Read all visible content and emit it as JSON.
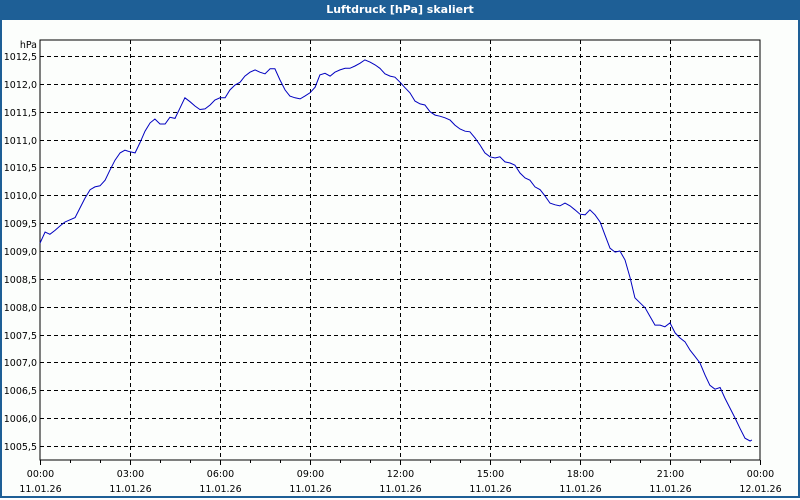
{
  "window": {
    "title": "Luftdruck [hPa] skaliert",
    "frame_color": "#1e5f96",
    "background": "#fcfefc"
  },
  "chart_data": {
    "type": "line",
    "title": "Luftdruck [hPa] skaliert",
    "xlabel": "",
    "ylabel": "hPa",
    "ylim": [
      1005.25,
      1012.78
    ],
    "grid": true,
    "legend": null,
    "line_color": "#0000c0",
    "y_ticks": [
      "1012,5",
      "1012,0",
      "1011,5",
      "1011,0",
      "1010,5",
      "1010,0",
      "1009,5",
      "1009,0",
      "1008,5",
      "1008,0",
      "1007,5",
      "1007,0",
      "1006,5",
      "1006,0",
      "1005,5"
    ],
    "y_tick_values": [
      1012.5,
      1012.0,
      1011.5,
      1011.0,
      1010.5,
      1010.0,
      1009.5,
      1009.0,
      1008.5,
      1008.0,
      1007.5,
      1007.0,
      1006.5,
      1006.0,
      1005.5
    ],
    "x_ticks": [
      {
        "time": "00:00",
        "date": "11.01.26"
      },
      {
        "time": "03:00",
        "date": "11.01.26"
      },
      {
        "time": "06:00",
        "date": "11.01.26"
      },
      {
        "time": "09:00",
        "date": "11.01.26"
      },
      {
        "time": "12:00",
        "date": "11.01.26"
      },
      {
        "time": "15:00",
        "date": "11.01.26"
      },
      {
        "time": "18:00",
        "date": "11.01.26"
      },
      {
        "time": "21:00",
        "date": "11.01.26"
      },
      {
        "time": "00:00",
        "date": "12.01.26"
      }
    ],
    "x_range_hours": [
      0,
      24
    ],
    "series": [
      {
        "name": "Luftdruck",
        "unit": "hPa",
        "x_hours": [
          0,
          0.17,
          0.33,
          0.5,
          0.67,
          0.83,
          1,
          1.17,
          1.33,
          1.5,
          1.67,
          1.83,
          2,
          2.17,
          2.33,
          2.5,
          2.67,
          2.83,
          3,
          3.17,
          3.33,
          3.5,
          3.67,
          3.83,
          4,
          4.17,
          4.33,
          4.5,
          4.67,
          4.83,
          5,
          5.17,
          5.33,
          5.5,
          5.67,
          5.83,
          6,
          6.17,
          6.33,
          6.5,
          6.67,
          6.83,
          7,
          7.17,
          7.33,
          7.5,
          7.67,
          7.83,
          8,
          8.17,
          8.33,
          8.5,
          8.67,
          8.83,
          9,
          9.17,
          9.33,
          9.5,
          9.67,
          9.83,
          10,
          10.17,
          10.33,
          10.5,
          10.67,
          10.83,
          11,
          11.17,
          11.33,
          11.5,
          11.67,
          11.83,
          12,
          12.17,
          12.33,
          12.5,
          12.67,
          12.83,
          13,
          13.17,
          13.33,
          13.5,
          13.67,
          13.83,
          14,
          14.17,
          14.33,
          14.5,
          14.67,
          14.83,
          15,
          15.17,
          15.33,
          15.5,
          15.67,
          15.83,
          16,
          16.17,
          16.33,
          16.5,
          16.67,
          16.83,
          17,
          17.17,
          17.33,
          17.5,
          17.67,
          17.83,
          18,
          18.17,
          18.33,
          18.5,
          18.67,
          18.83,
          19,
          19.17,
          19.33,
          19.5,
          19.67,
          19.83,
          20,
          20.17,
          20.33,
          20.5,
          20.67,
          20.83,
          21,
          21.17,
          21.33,
          21.5,
          21.67,
          21.83,
          22,
          22.17,
          22.33,
          22.5,
          22.67,
          22.83,
          23,
          23.17,
          23.33,
          23.5,
          23.67,
          23.73
        ],
        "values": [
          1009.14,
          1009.34,
          1009.3,
          1009.37,
          1009.45,
          1009.52,
          1009.56,
          1009.6,
          1009.77,
          1009.95,
          1010.1,
          1010.15,
          1010.17,
          1010.27,
          1010.45,
          1010.63,
          1010.76,
          1010.81,
          1010.78,
          1010.76,
          1010.94,
          1011.15,
          1011.3,
          1011.37,
          1011.28,
          1011.28,
          1011.4,
          1011.38,
          1011.57,
          1011.75,
          1011.68,
          1011.6,
          1011.54,
          1011.55,
          1011.62,
          1011.71,
          1011.75,
          1011.75,
          1011.89,
          1011.98,
          1012.03,
          1012.14,
          1012.21,
          1012.25,
          1012.21,
          1012.18,
          1012.27,
          1012.27,
          1012.07,
          1011.89,
          1011.78,
          1011.75,
          1011.73,
          1011.78,
          1011.84,
          1011.94,
          1012.16,
          1012.19,
          1012.14,
          1012.21,
          1012.25,
          1012.28,
          1012.28,
          1012.32,
          1012.37,
          1012.43,
          1012.39,
          1012.34,
          1012.28,
          1012.18,
          1012.14,
          1012.12,
          1012.03,
          1011.93,
          1011.84,
          1011.69,
          1011.64,
          1011.62,
          1011.5,
          1011.44,
          1011.42,
          1011.39,
          1011.35,
          1011.26,
          1011.19,
          1011.15,
          1011.14,
          1011.03,
          1010.9,
          1010.76,
          1010.69,
          1010.67,
          1010.69,
          1010.6,
          1010.58,
          1010.54,
          1010.4,
          1010.31,
          1010.27,
          1010.15,
          1010.1,
          1009.99,
          1009.86,
          1009.83,
          1009.81,
          1009.86,
          1009.81,
          1009.74,
          1009.66,
          1009.65,
          1009.74,
          1009.65,
          1009.52,
          1009.29,
          1009.05,
          1008.98,
          1009.0,
          1008.84,
          1008.52,
          1008.16,
          1008.07,
          1007.98,
          1007.83,
          1007.67,
          1007.67,
          1007.64,
          1007.71,
          1007.53,
          1007.44,
          1007.37,
          1007.22,
          1007.11,
          1006.99,
          1006.77,
          1006.59,
          1006.52,
          1006.55,
          1006.36,
          1006.18,
          1006.0,
          1005.82,
          1005.64,
          1005.59,
          1005.61
        ]
      }
    ]
  }
}
